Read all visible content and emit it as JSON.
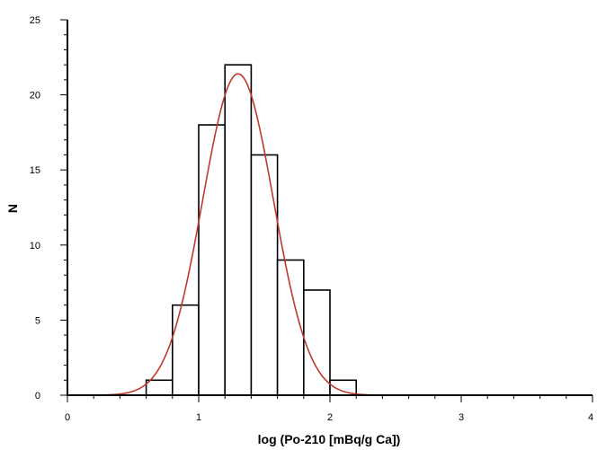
{
  "chart_data": {
    "type": "bar",
    "subtype": "histogram",
    "xlabel": "log (Po-210 [mBq/g Ca])",
    "ylabel": "N",
    "xlim": [
      0,
      4
    ],
    "ylim": [
      0,
      25
    ],
    "x_ticks": [
      0,
      1,
      2,
      3,
      4
    ],
    "y_ticks": [
      0,
      5,
      10,
      15,
      20,
      25
    ],
    "bin_edges": [
      0.6,
      0.8,
      1.0,
      1.2,
      1.4,
      1.6,
      1.8,
      2.0,
      2.2
    ],
    "values": [
      1,
      6,
      18,
      22,
      16,
      9,
      7,
      1
    ],
    "fit": {
      "type": "gaussian",
      "amplitude": 21.4,
      "mean": 1.3,
      "sigma": 0.27,
      "x_range": [
        0.08,
        4.0
      ],
      "color": "#c0392b"
    },
    "bar_fill": "#ffffff",
    "bar_stroke": "#000000",
    "grid": false
  }
}
